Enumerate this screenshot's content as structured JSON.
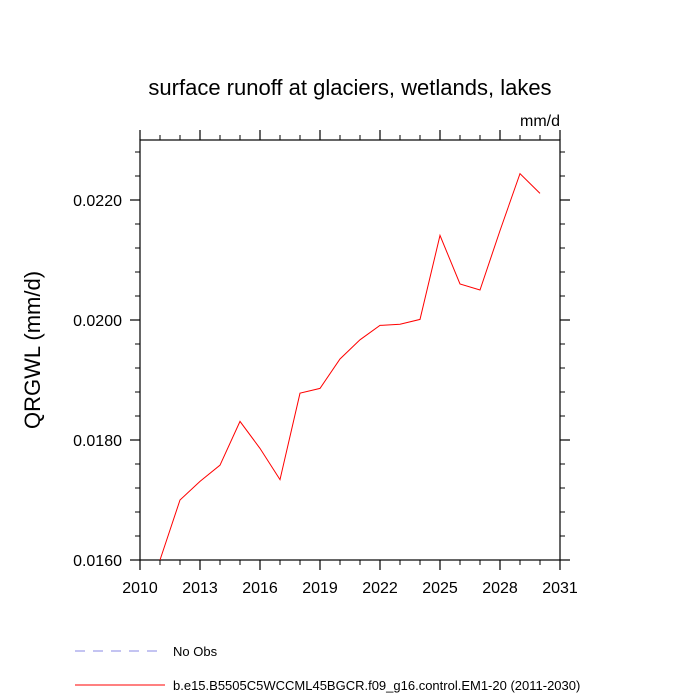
{
  "chart_data": {
    "type": "line",
    "title": "surface runoff at glaciers, wetlands, lakes",
    "units": "mm/d",
    "ylabel": "QRGWL  (mm/d)",
    "xlabel": "",
    "xlim": [
      2010,
      2031
    ],
    "ylim": [
      0.016,
      0.023
    ],
    "x_ticks": [
      "2010",
      "2013",
      "2016",
      "2019",
      "2022",
      "2025",
      "2028",
      "2031"
    ],
    "y_ticks": [
      "0.0160",
      "0.0180",
      "0.0200",
      "0.0220"
    ],
    "series": [
      {
        "name": "b.e15.B5505C5WCCML45BGCR.f09_g16.control.EM1-20 (2011-2030)",
        "color": "#ff0000",
        "x": [
          2011,
          2012,
          2013,
          2014,
          2015,
          2016,
          2017,
          2018,
          2019,
          2020,
          2021,
          2022,
          2023,
          2024,
          2025,
          2026,
          2027,
          2028,
          2029,
          2030
        ],
        "y": [
          0.016,
          0.017,
          0.01731,
          0.01758,
          0.01831,
          0.01786,
          0.01734,
          0.01878,
          0.01886,
          0.01935,
          0.01967,
          0.01991,
          0.01993,
          0.02001,
          0.02141,
          0.0206,
          0.0205,
          0.02149,
          0.02244,
          0.02211
        ]
      }
    ],
    "legend": [
      {
        "label": "No Obs",
        "color": "#8a8ae6",
        "dash": "dashed"
      },
      {
        "label": "b.e15.B5505C5WCCML45BGCR.f09_g16.control.EM1-20 (2011-2030)",
        "color": "#ff0000",
        "dash": "solid"
      }
    ],
    "legend_placement": "bottom",
    "grid": false
  }
}
